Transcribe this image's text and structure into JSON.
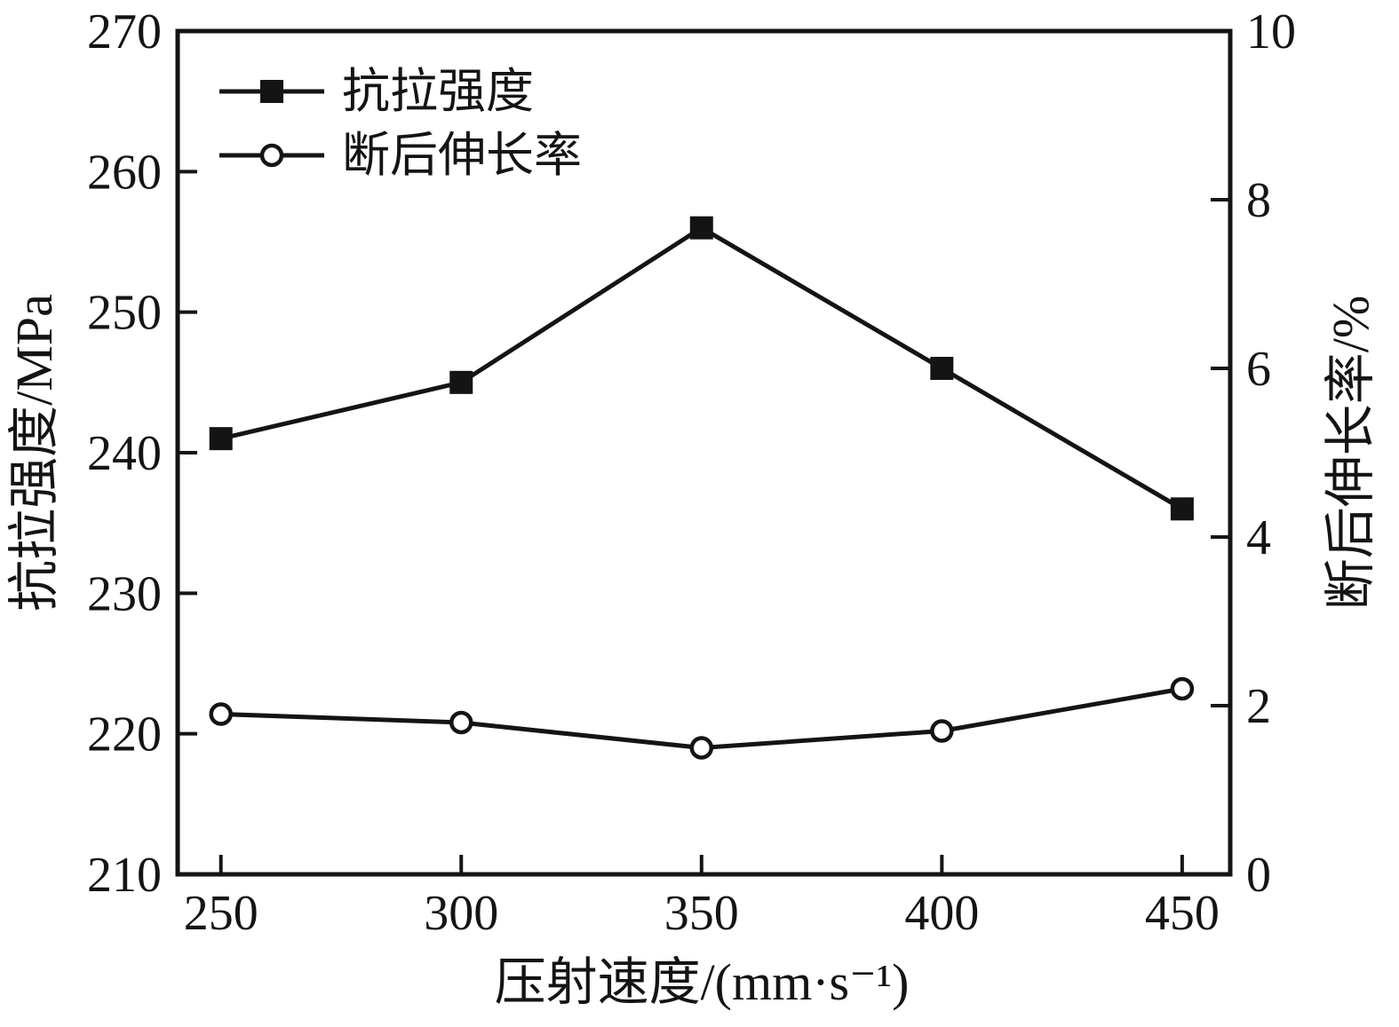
{
  "figure": {
    "background": "#ffffff",
    "ink_color": "#141414"
  },
  "chart_data": {
    "type": "line",
    "title": "",
    "xlabel": "压射速度/(mm·s⁻¹)",
    "ylabel_left": "抗拉强度/MPa",
    "ylabel_right": "断后伸长率/%",
    "x": [
      250,
      300,
      350,
      400,
      450
    ],
    "xticks": [
      250,
      300,
      350,
      400,
      450
    ],
    "xlim": [
      241,
      460
    ],
    "ylim_left": [
      210,
      270
    ],
    "yticks_left": [
      210,
      220,
      230,
      240,
      250,
      260,
      270
    ],
    "ylim_right": [
      0,
      10
    ],
    "yticks_right": [
      0,
      2,
      4,
      6,
      8,
      10
    ],
    "grid": false,
    "legend_position": "upper-left",
    "series": [
      {
        "name": "抗拉强度",
        "axis": "left",
        "marker": "filled-square",
        "color": "#141414",
        "values": [
          241,
          245,
          256,
          246,
          236
        ]
      },
      {
        "name": "断后伸长率",
        "axis": "right",
        "marker": "open-circle",
        "color": "#141414",
        "values": [
          1.9,
          1.8,
          1.5,
          1.7,
          2.2
        ]
      }
    ]
  }
}
